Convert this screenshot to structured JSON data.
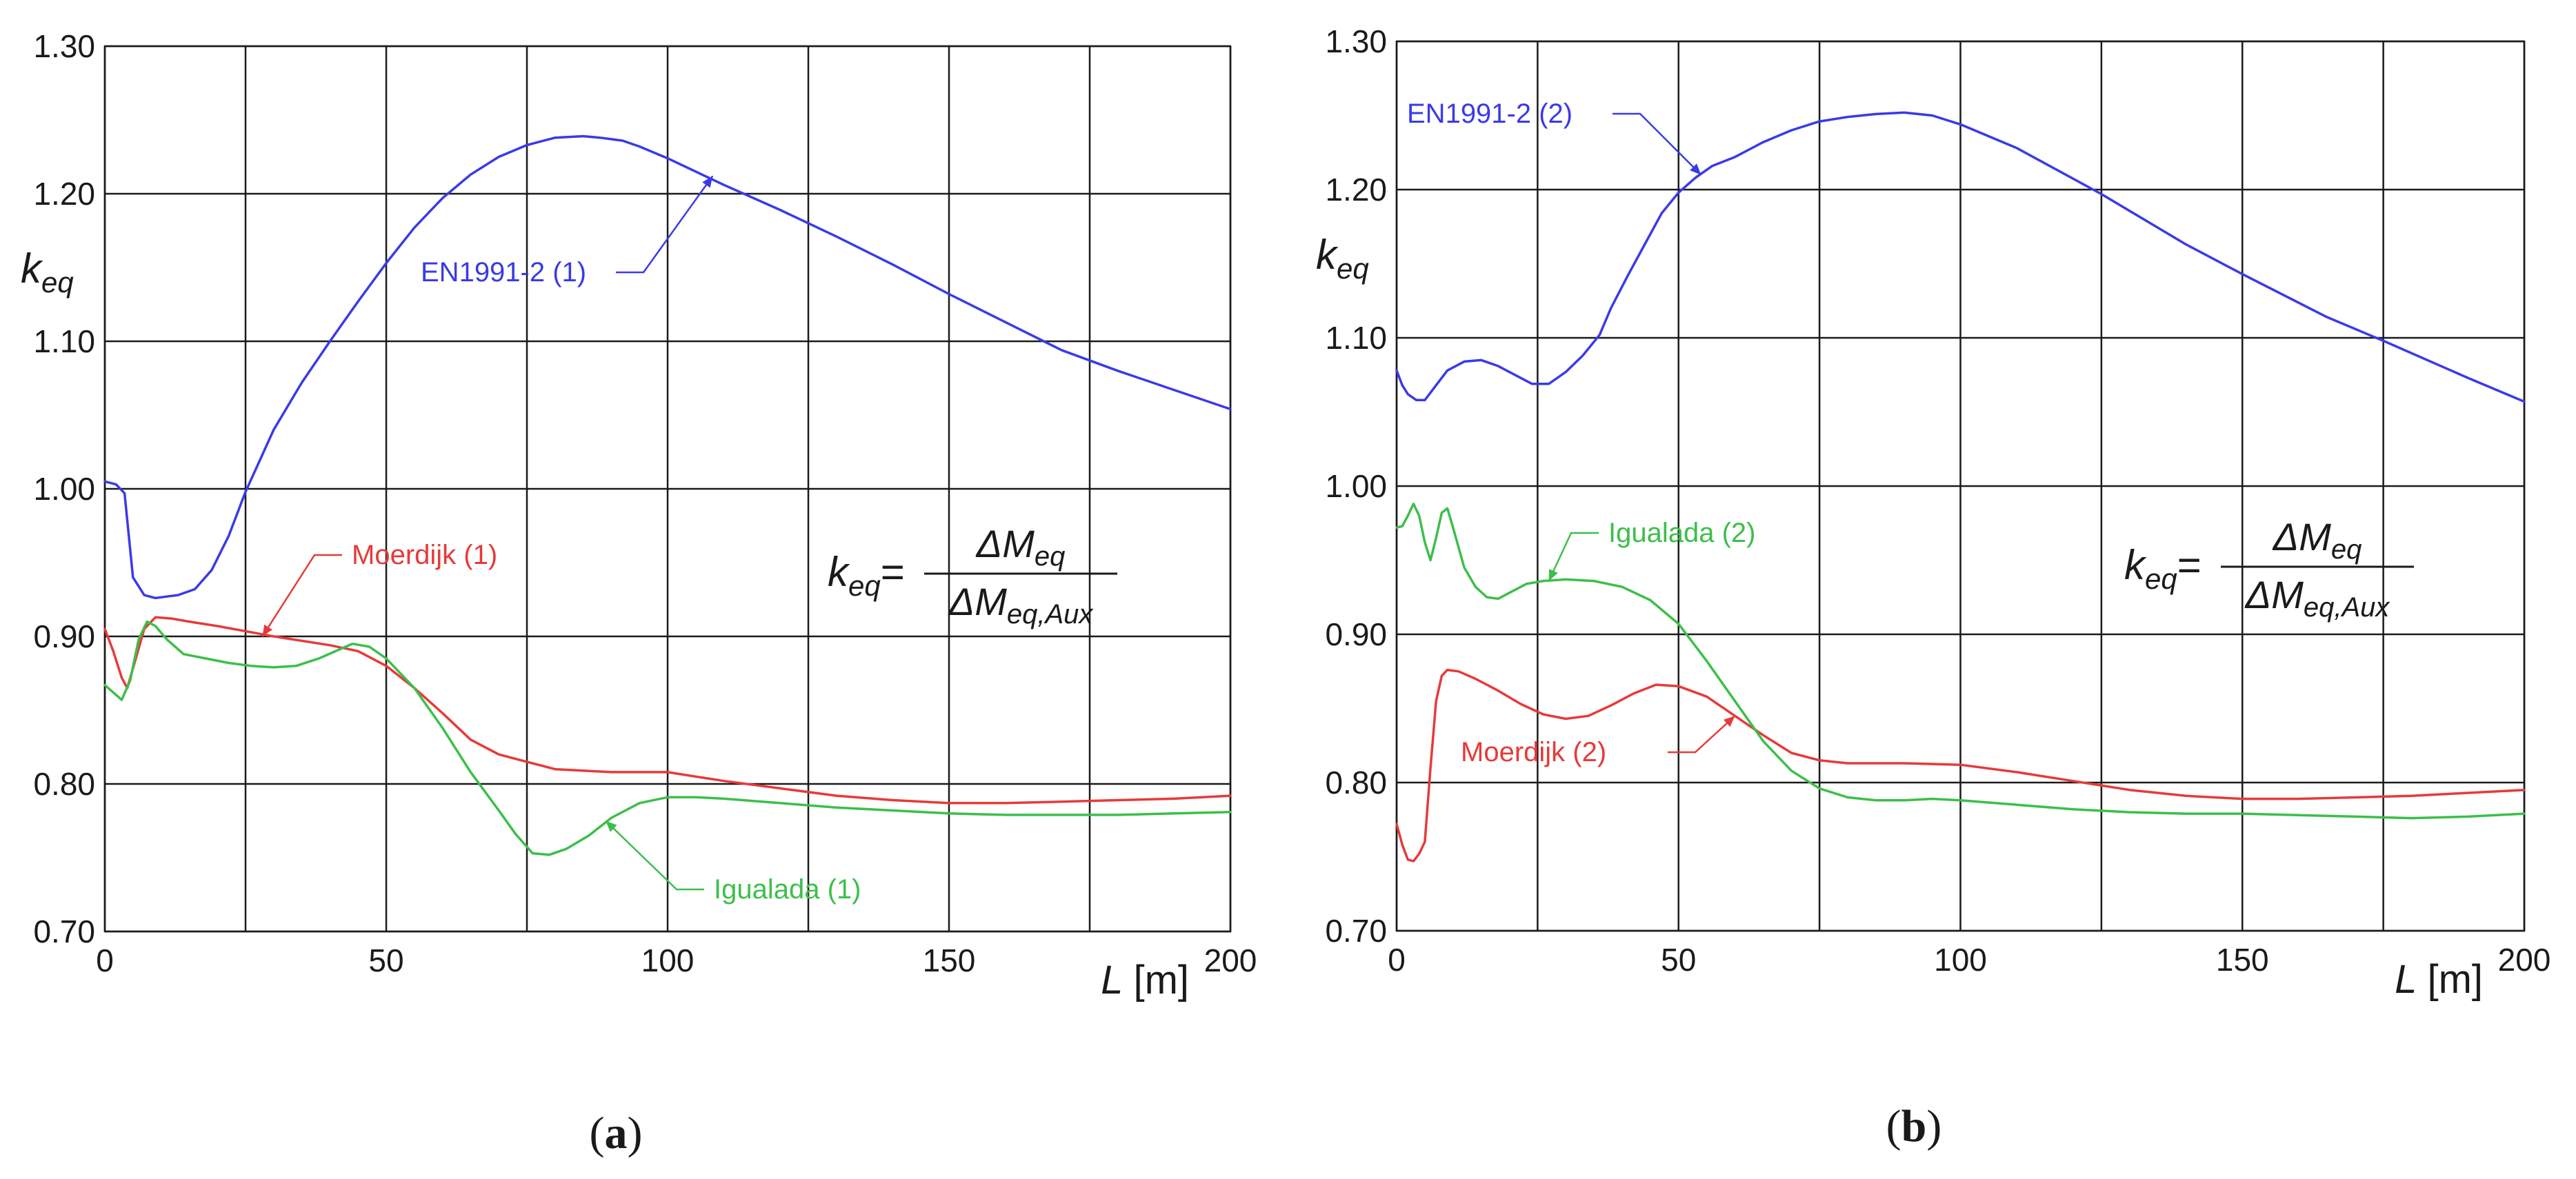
{
  "chart_data": [
    {
      "type": "line",
      "panel_label": "a",
      "ylabel": "k",
      "ylabel_sub": "eq",
      "xlabel_var": "L",
      "xlabel_unit": "[m]",
      "xlim": [
        0,
        200
      ],
      "ylim": [
        0.7,
        1.3
      ],
      "xticks": [
        0,
        50,
        100,
        150,
        200
      ],
      "xgrid": [
        0,
        25,
        50,
        75,
        100,
        125,
        150,
        175,
        200
      ],
      "yticks": [
        0.7,
        0.8,
        0.9,
        1.0,
        1.1,
        1.2,
        1.3
      ],
      "ytick_labels": [
        "0.70",
        "0.80",
        "0.90",
        "1.00",
        "1.10",
        "1.20",
        "1.30"
      ],
      "formula": {
        "lhs": "k",
        "lhs_sub": "eq",
        "eq": "=",
        "num": "ΔM",
        "num_sub": "eq",
        "den": "ΔM",
        "den_sub": "eq,Aux"
      },
      "series": [
        {
          "name": "EN1991-2 (1)",
          "label": "EN1991-2 (1)",
          "color": "#3a3ae8",
          "x": [
            0,
            2,
            3.5,
            5,
            7,
            9,
            11,
            13,
            16,
            19,
            22,
            25,
            30,
            35,
            40,
            45,
            50,
            55,
            60,
            65,
            70,
            75,
            80,
            85,
            88,
            92,
            95,
            100,
            110,
            120,
            130,
            140,
            150,
            160,
            170,
            180,
            190,
            200
          ],
          "y": [
            1.005,
            1.003,
            0.997,
            0.94,
            0.928,
            0.926,
            0.927,
            0.928,
            0.932,
            0.945,
            0.968,
            0.998,
            1.04,
            1.072,
            1.1,
            1.127,
            1.153,
            1.177,
            1.197,
            1.213,
            1.225,
            1.233,
            1.238,
            1.239,
            1.238,
            1.236,
            1.232,
            1.224,
            1.206,
            1.189,
            1.171,
            1.152,
            1.132,
            1.113,
            1.094,
            1.08,
            1.067,
            1.054
          ]
        },
        {
          "name": "Moerdijk (1)",
          "label": "Moerdijk (1)",
          "color": "#e63a3a",
          "x": [
            0,
            1.5,
            3,
            4,
            5.5,
            7,
            9,
            12,
            15,
            20,
            30,
            40,
            45,
            50,
            55,
            60,
            65,
            70,
            75,
            80,
            90,
            100,
            110,
            120,
            130,
            140,
            150,
            160,
            170,
            180,
            190,
            200
          ],
          "y": [
            0.905,
            0.89,
            0.872,
            0.865,
            0.885,
            0.905,
            0.913,
            0.912,
            0.91,
            0.907,
            0.9,
            0.894,
            0.89,
            0.88,
            0.865,
            0.848,
            0.83,
            0.82,
            0.815,
            0.81,
            0.808,
            0.808,
            0.802,
            0.797,
            0.792,
            0.789,
            0.787,
            0.787,
            0.788,
            0.789,
            0.79,
            0.792
          ]
        },
        {
          "name": "Igualada (1)",
          "label": "Igualada (1)",
          "color": "#3cbf4a",
          "x": [
            0,
            1.5,
            3,
            4.5,
            6,
            7.5,
            9,
            11,
            14,
            18,
            22,
            26,
            30,
            34,
            38,
            41,
            44,
            47,
            50,
            55,
            60,
            65,
            70,
            73,
            76,
            79,
            82,
            86,
            90,
            95,
            100,
            105,
            110,
            120,
            130,
            140,
            150,
            160,
            170,
            180,
            190,
            200
          ],
          "y": [
            0.867,
            0.862,
            0.857,
            0.87,
            0.898,
            0.91,
            0.907,
            0.898,
            0.888,
            0.885,
            0.882,
            0.88,
            0.879,
            0.88,
            0.885,
            0.89,
            0.895,
            0.893,
            0.885,
            0.865,
            0.838,
            0.808,
            0.782,
            0.766,
            0.753,
            0.752,
            0.756,
            0.765,
            0.777,
            0.787,
            0.791,
            0.791,
            0.79,
            0.787,
            0.784,
            0.782,
            0.78,
            0.779,
            0.779,
            0.779,
            0.78,
            0.781
          ]
        }
      ],
      "annotations": [
        {
          "series": 0,
          "text": "EN1991-2 (1)",
          "point_x": 108,
          "point_y": 1.212
        },
        {
          "series": 1,
          "text": "Moerdijk (1)",
          "point_x": 28,
          "point_y": 0.9
        },
        {
          "series": 2,
          "text": "Igualada (1)",
          "point_x": 89,
          "point_y": 0.775
        }
      ]
    },
    {
      "type": "line",
      "panel_label": "b",
      "ylabel": "k",
      "ylabel_sub": "eq",
      "xlabel_var": "L",
      "xlabel_unit": "[m]",
      "xlim": [
        0,
        200
      ],
      "ylim": [
        0.7,
        1.3
      ],
      "xticks": [
        0,
        50,
        100,
        150,
        200
      ],
      "xgrid": [
        0,
        25,
        50,
        75,
        100,
        125,
        150,
        175,
        200
      ],
      "yticks": [
        0.7,
        0.8,
        0.9,
        1.0,
        1.1,
        1.2,
        1.3
      ],
      "ytick_labels": [
        "0.70",
        "0.80",
        "0.90",
        "1.00",
        "1.10",
        "1.20",
        "1.30"
      ],
      "formula": {
        "lhs": "k",
        "lhs_sub": "eq",
        "eq": "=",
        "num": "ΔM",
        "num_sub": "eq",
        "den": "ΔM",
        "den_sub": "eq,Aux"
      },
      "series": [
        {
          "name": "EN1991-2 (2)",
          "label": "EN1991-2 (2)",
          "color": "#3a3ae8",
          "x": [
            0,
            1,
            2,
            3.5,
            5,
            7,
            9,
            12,
            15,
            18,
            21,
            24,
            27,
            30,
            33,
            36,
            38,
            41,
            44,
            47,
            50,
            53,
            56,
            60,
            65,
            70,
            75,
            80,
            85,
            90,
            95,
            100,
            110,
            125,
            140,
            150,
            165,
            175,
            190,
            200
          ],
          "y": [
            1.078,
            1.068,
            1.062,
            1.058,
            1.058,
            1.068,
            1.078,
            1.084,
            1.085,
            1.081,
            1.075,
            1.069,
            1.069,
            1.077,
            1.088,
            1.102,
            1.12,
            1.142,
            1.163,
            1.184,
            1.198,
            1.208,
            1.216,
            1.222,
            1.232,
            1.24,
            1.246,
            1.249,
            1.251,
            1.252,
            1.25,
            1.244,
            1.228,
            1.197,
            1.163,
            1.143,
            1.114,
            1.098,
            1.073,
            1.057
          ]
        },
        {
          "name": "Moerdijk (2)",
          "label": "Moerdijk (2)",
          "color": "#e63a3a",
          "x": [
            0,
            1,
            2,
            3,
            4,
            5,
            6,
            7,
            8,
            9,
            11,
            14,
            18,
            22,
            26,
            30,
            34,
            38,
            42,
            46,
            50,
            55,
            60,
            65,
            70,
            75,
            80,
            90,
            100,
            110,
            120,
            130,
            140,
            150,
            160,
            170,
            180,
            190,
            200
          ],
          "y": [
            0.772,
            0.758,
            0.748,
            0.747,
            0.752,
            0.76,
            0.81,
            0.855,
            0.872,
            0.876,
            0.875,
            0.87,
            0.862,
            0.853,
            0.846,
            0.843,
            0.845,
            0.852,
            0.86,
            0.866,
            0.865,
            0.858,
            0.845,
            0.832,
            0.82,
            0.815,
            0.813,
            0.813,
            0.812,
            0.807,
            0.801,
            0.795,
            0.791,
            0.789,
            0.789,
            0.79,
            0.791,
            0.793,
            0.795
          ]
        },
        {
          "name": "Igualada (2)",
          "label": "Igualada (2)",
          "color": "#3cbf4a",
          "x": [
            0,
            1,
            2,
            3,
            4,
            5,
            6,
            7,
            8,
            9,
            10,
            12,
            14,
            16,
            18,
            20,
            23,
            26,
            30,
            35,
            40,
            45,
            50,
            55,
            60,
            65,
            70,
            75,
            80,
            85,
            90,
            95,
            100,
            110,
            120,
            130,
            140,
            150,
            160,
            170,
            180,
            190,
            200
          ],
          "y": [
            0.972,
            0.973,
            0.98,
            0.988,
            0.98,
            0.962,
            0.95,
            0.965,
            0.982,
            0.985,
            0.972,
            0.945,
            0.932,
            0.925,
            0.924,
            0.928,
            0.934,
            0.936,
            0.937,
            0.936,
            0.932,
            0.923,
            0.907,
            0.882,
            0.855,
            0.828,
            0.808,
            0.796,
            0.79,
            0.788,
            0.788,
            0.789,
            0.788,
            0.785,
            0.782,
            0.78,
            0.779,
            0.779,
            0.778,
            0.777,
            0.776,
            0.777,
            0.779
          ]
        }
      ],
      "annotations": [
        {
          "series": 0,
          "text": "EN1991-2 (2)",
          "point_x": 54,
          "point_y": 1.21
        },
        {
          "series": 1,
          "text": "Moerdijk (2)",
          "point_x": 60,
          "point_y": 0.845
        },
        {
          "series": 2,
          "text": "Igualada (2)",
          "point_x": 27,
          "point_y": 0.936
        }
      ]
    }
  ]
}
